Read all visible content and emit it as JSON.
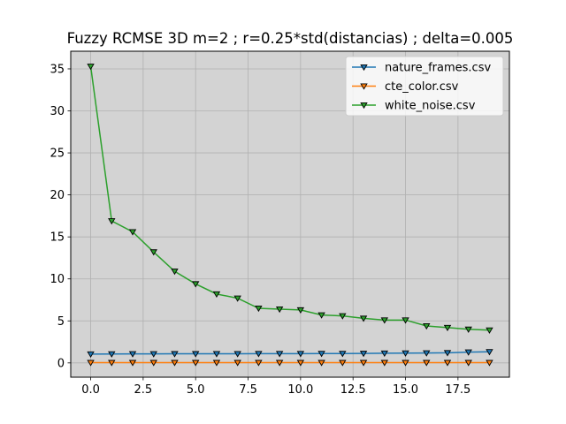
{
  "chart_data": {
    "type": "line",
    "title": "Fuzzy RCMSE 3D m=2 ; r=0.25*std(distancias) ; delta=0.005",
    "xlabel": "",
    "ylabel": "",
    "xlim": [
      -0.95,
      19.95
    ],
    "ylim": [
      -1.7,
      37.1
    ],
    "x": [
      0,
      1,
      2,
      3,
      4,
      5,
      6,
      7,
      8,
      9,
      10,
      11,
      12,
      13,
      14,
      15,
      16,
      17,
      18,
      19
    ],
    "xticks": [
      0,
      2.5,
      5,
      7.5,
      10,
      12.5,
      15,
      17.5
    ],
    "xtick_labels": [
      "0.0",
      "2.5",
      "5.0",
      "7.5",
      "10.0",
      "12.5",
      "15.0",
      "17.5"
    ],
    "yticks": [
      0,
      5,
      10,
      15,
      20,
      25,
      30,
      35
    ],
    "ytick_labels": [
      "0",
      "5",
      "10",
      "15",
      "20",
      "25",
      "30",
      "35"
    ],
    "grid": true,
    "background": "#d3d3d3",
    "legend_position": "top-right",
    "marker": "down-triangle",
    "series": [
      {
        "name": "nature_frames.csv",
        "color": "#1f77b4",
        "values": [
          1.05,
          1.06,
          1.07,
          1.07,
          1.08,
          1.08,
          1.09,
          1.09,
          1.1,
          1.1,
          1.1,
          1.11,
          1.11,
          1.12,
          1.15,
          1.17,
          1.18,
          1.2,
          1.28,
          1.32
        ]
      },
      {
        "name": "cte_color.csv",
        "color": "#ff7f0e",
        "values": [
          0.03,
          0.03,
          0.03,
          0.03,
          0.03,
          0.03,
          0.03,
          0.03,
          0.03,
          0.03,
          0.03,
          0.03,
          0.03,
          0.03,
          0.03,
          0.03,
          0.03,
          0.03,
          0.03,
          0.03
        ]
      },
      {
        "name": "white_noise.csv",
        "color": "#2ca02c",
        "values": [
          35.3,
          16.9,
          15.6,
          13.2,
          10.9,
          9.4,
          8.2,
          7.7,
          6.5,
          6.4,
          6.3,
          5.7,
          5.6,
          5.3,
          5.1,
          5.1,
          4.4,
          4.2,
          4.0,
          3.9
        ]
      }
    ]
  }
}
